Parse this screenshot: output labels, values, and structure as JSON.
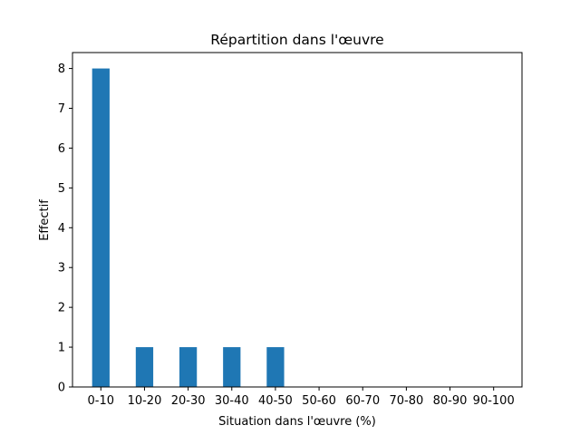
{
  "chart_data": {
    "type": "bar",
    "title": "Répartition dans l'œuvre",
    "x_label": "Situation dans l'œuvre (%)",
    "y_label": "Effectif",
    "categories": [
      "0-10",
      "10-20",
      "20-30",
      "30-40",
      "40-50",
      "50-60",
      "60-70",
      "70-80",
      "80-90",
      "90-100"
    ],
    "values": [
      8,
      1,
      1,
      1,
      1,
      0,
      0,
      0,
      0,
      0
    ],
    "color": "#1f77b4",
    "ylim": [
      0,
      8.4
    ],
    "yticks": [
      0,
      1,
      2,
      3,
      4,
      5,
      6,
      7,
      8
    ],
    "grid": false
  }
}
